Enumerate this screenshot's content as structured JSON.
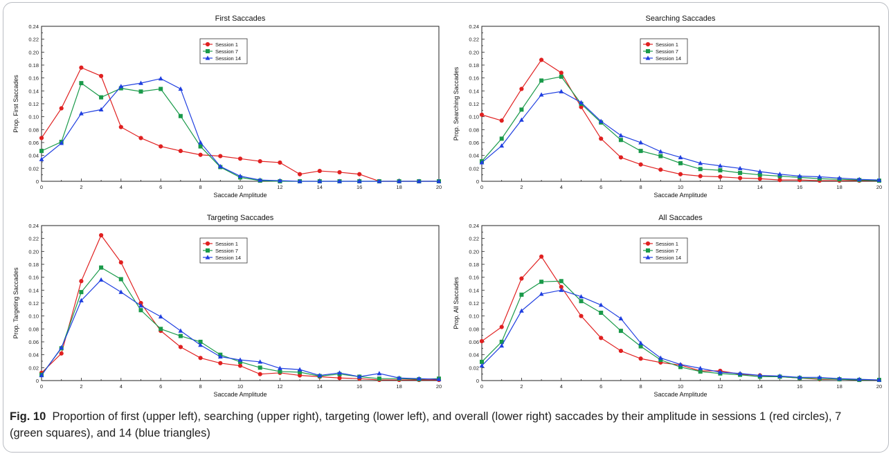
{
  "figure": {
    "caption_label": "Fig. 10",
    "caption_text": "Proportion of first (upper left), searching (upper right), targeting (lower left), and overall (lower right) saccades by their amplitude in sessions 1 (red circles), 7 (green squares), and 14 (blue triangles)"
  },
  "colors": {
    "session1": "#e02020",
    "session7": "#1a9a4a",
    "session14": "#1f3fe0"
  },
  "chart_data": [
    {
      "type": "line",
      "title": "First Saccades",
      "xlabel": "Saccade Amplitude",
      "ylabel": "Prop. First Saccades",
      "xlim": [
        0,
        20
      ],
      "ylim": [
        0,
        0.24
      ],
      "xticks": [
        "0",
        "2",
        "4",
        "6",
        "8",
        "10",
        "12",
        "14",
        "16",
        "18",
        "20"
      ],
      "yticks": [
        "0",
        "0.02",
        "0.04",
        "0.06",
        "0.08",
        "0.10",
        "0.12",
        "0.14",
        "0.16",
        "0.18",
        "0.20",
        "0.22",
        "0.24"
      ],
      "legend": "top-center",
      "x": [
        0,
        1,
        2,
        3,
        4,
        5,
        6,
        7,
        8,
        9,
        10,
        11,
        12,
        13,
        14,
        15,
        16,
        17,
        18,
        19,
        20
      ],
      "series": [
        {
          "name": "Session 1",
          "marker": "circle",
          "color": "#e02020",
          "values": [
            0.067,
            0.113,
            0.176,
            0.163,
            0.084,
            0.067,
            0.054,
            0.047,
            0.041,
            0.039,
            0.035,
            0.031,
            0.029,
            0.011,
            0.016,
            0.014,
            0.011,
            0,
            0,
            0,
            0
          ]
        },
        {
          "name": "Session 7",
          "marker": "square",
          "color": "#1a9a4a",
          "values": [
            0.047,
            0.061,
            0.152,
            0.13,
            0.144,
            0.139,
            0.143,
            0.101,
            0.054,
            0.022,
            0.006,
            0.001,
            0,
            0,
            0,
            0,
            0,
            0,
            0,
            0,
            0
          ]
        },
        {
          "name": "Session 14",
          "marker": "triangle",
          "color": "#1f3fe0",
          "values": [
            0.034,
            0.059,
            0.105,
            0.111,
            0.147,
            0.152,
            0.159,
            0.143,
            0.06,
            0.023,
            0.008,
            0.002,
            0.001,
            0,
            0,
            0,
            0,
            0,
            0,
            0,
            0
          ]
        }
      ]
    },
    {
      "type": "line",
      "title": "Searching Saccades",
      "xlabel": "Saccade Amplitude",
      "ylabel": "Prop. Searching Saccades",
      "xlim": [
        0,
        20
      ],
      "ylim": [
        0,
        0.24
      ],
      "xticks": [
        "0",
        "2",
        "4",
        "6",
        "8",
        "10",
        "12",
        "14",
        "16",
        "18",
        "20"
      ],
      "yticks": [
        "0",
        "0.02",
        "0.04",
        "0.06",
        "0.08",
        "0.10",
        "0.12",
        "0.14",
        "0.16",
        "0.18",
        "0.20",
        "0.22",
        "0.24"
      ],
      "legend": "top-center",
      "x": [
        0,
        1,
        2,
        3,
        4,
        5,
        6,
        7,
        8,
        9,
        10,
        11,
        12,
        13,
        14,
        15,
        16,
        17,
        18,
        19,
        20
      ],
      "series": [
        {
          "name": "Session 1",
          "marker": "circle",
          "color": "#e02020",
          "values": [
            0.103,
            0.094,
            0.143,
            0.188,
            0.168,
            0.115,
            0.066,
            0.037,
            0.026,
            0.018,
            0.011,
            0.008,
            0.007,
            0.005,
            0.004,
            0.002,
            0.002,
            0.001,
            0.001,
            0.001,
            0.001
          ]
        },
        {
          "name": "Session 7",
          "marker": "square",
          "color": "#1a9a4a",
          "values": [
            0.031,
            0.066,
            0.111,
            0.156,
            0.162,
            0.12,
            0.091,
            0.064,
            0.047,
            0.039,
            0.028,
            0.019,
            0.017,
            0.013,
            0.01,
            0.008,
            0.006,
            0.004,
            0.003,
            0.002,
            0.001
          ]
        },
        {
          "name": "Session 14",
          "marker": "triangle",
          "color": "#1f3fe0",
          "values": [
            0.029,
            0.055,
            0.095,
            0.134,
            0.139,
            0.122,
            0.093,
            0.071,
            0.06,
            0.046,
            0.037,
            0.028,
            0.024,
            0.02,
            0.015,
            0.011,
            0.008,
            0.007,
            0.005,
            0.003,
            0.002
          ]
        }
      ]
    },
    {
      "type": "line",
      "title": "Targeting Saccades",
      "xlabel": "Saccade Amplitude",
      "ylabel": "Prop. Targeting Saccades",
      "xlim": [
        0,
        20
      ],
      "ylim": [
        0,
        0.24
      ],
      "xticks": [
        "0",
        "2",
        "4",
        "6",
        "8",
        "10",
        "12",
        "14",
        "16",
        "18",
        "20"
      ],
      "yticks": [
        "0",
        "0.02",
        "0.04",
        "0.06",
        "0.08",
        "0.10",
        "0.12",
        "0.14",
        "0.16",
        "0.18",
        "0.20",
        "0.22",
        "0.24"
      ],
      "legend": "top-center",
      "x": [
        0,
        1,
        2,
        3,
        4,
        5,
        6,
        7,
        8,
        9,
        10,
        11,
        12,
        13,
        14,
        15,
        16,
        17,
        18,
        19,
        20
      ],
      "series": [
        {
          "name": "Session 1",
          "marker": "circle",
          "color": "#e02020",
          "values": [
            0.012,
            0.042,
            0.154,
            0.225,
            0.183,
            0.12,
            0.077,
            0.052,
            0.035,
            0.027,
            0.023,
            0.01,
            0.012,
            0.008,
            0.006,
            0.004,
            0.003,
            0.001,
            0.001,
            0.001,
            0.001
          ]
        },
        {
          "name": "Session 7",
          "marker": "square",
          "color": "#1a9a4a",
          "values": [
            0.009,
            0.05,
            0.137,
            0.175,
            0.157,
            0.109,
            0.08,
            0.069,
            0.06,
            0.04,
            0.029,
            0.02,
            0.014,
            0.013,
            0.007,
            0.01,
            0.006,
            0.003,
            0.003,
            0.002,
            0.003
          ]
        },
        {
          "name": "Session 14",
          "marker": "triangle",
          "color": "#1f3fe0",
          "values": [
            0.008,
            0.051,
            0.124,
            0.156,
            0.137,
            0.116,
            0.099,
            0.077,
            0.055,
            0.037,
            0.032,
            0.029,
            0.019,
            0.017,
            0.008,
            0.012,
            0.006,
            0.011,
            0.004,
            0.003,
            0.002
          ]
        }
      ]
    },
    {
      "type": "line",
      "title": "All Saccades",
      "xlabel": "Saccade Amplitude",
      "ylabel": "Prop. All Saccades",
      "xlim": [
        0,
        20
      ],
      "ylim": [
        0,
        0.24
      ],
      "xticks": [
        "0",
        "2",
        "4",
        "6",
        "8",
        "10",
        "12",
        "14",
        "16",
        "18",
        "20"
      ],
      "yticks": [
        "0",
        "0.02",
        "0.04",
        "0.06",
        "0.08",
        "0.10",
        "0.12",
        "0.14",
        "0.16",
        "0.18",
        "0.20",
        "0.22",
        "0.24"
      ],
      "legend": "top-center",
      "x": [
        0,
        1,
        2,
        3,
        4,
        5,
        6,
        7,
        8,
        9,
        10,
        11,
        12,
        13,
        14,
        15,
        16,
        17,
        18,
        19,
        20
      ],
      "series": [
        {
          "name": "Session 1",
          "marker": "circle",
          "color": "#e02020",
          "values": [
            0.061,
            0.083,
            0.158,
            0.192,
            0.145,
            0.1,
            0.066,
            0.046,
            0.034,
            0.028,
            0.024,
            0.015,
            0.015,
            0.01,
            0.008,
            0.006,
            0.004,
            0.002,
            0.002,
            0.001,
            0.001
          ]
        },
        {
          "name": "Session 7",
          "marker": "square",
          "color": "#1a9a4a",
          "values": [
            0.029,
            0.06,
            0.133,
            0.153,
            0.154,
            0.123,
            0.105,
            0.077,
            0.053,
            0.032,
            0.021,
            0.014,
            0.011,
            0.009,
            0.006,
            0.006,
            0.004,
            0.003,
            0.002,
            0.001,
            0.001
          ]
        },
        {
          "name": "Session 14",
          "marker": "triangle",
          "color": "#1f3fe0",
          "values": [
            0.023,
            0.054,
            0.108,
            0.134,
            0.14,
            0.13,
            0.117,
            0.096,
            0.058,
            0.035,
            0.025,
            0.019,
            0.013,
            0.011,
            0.008,
            0.007,
            0.005,
            0.005,
            0.003,
            0.002,
            0.001
          ]
        }
      ]
    }
  ]
}
